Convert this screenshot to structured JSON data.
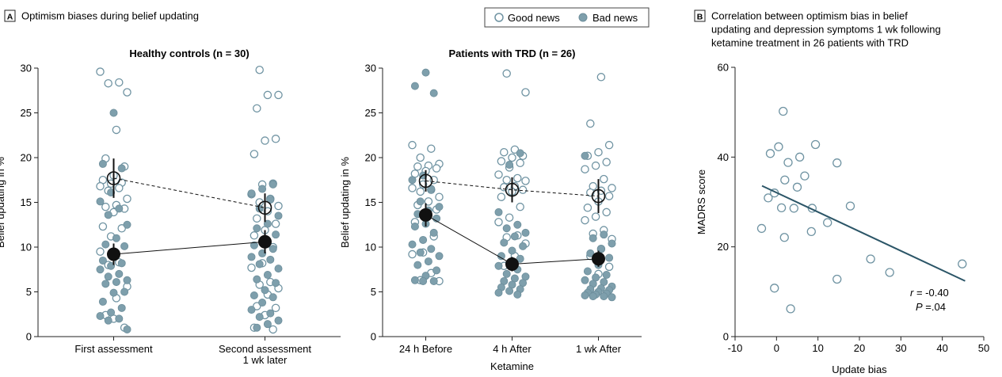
{
  "colors": {
    "good": "#6f93a2",
    "bad": "#7e9fac",
    "line": "#2b5567",
    "axis": "#222222"
  },
  "panel_a": {
    "letter": "A",
    "title": "Optimism biases during belief updating",
    "legend": {
      "good": "Good news",
      "bad": "Bad news"
    }
  },
  "panel_b": {
    "letter": "B",
    "title_lines": [
      "Correlation between optimism bias in belief",
      "updating and depression symptoms 1 wk following",
      "ketamine treatment in 26 patients with TRD"
    ]
  },
  "chart_data": [
    {
      "type": "scatter",
      "panel": "A",
      "title": "Healthy controls (n = 30)",
      "ylabel": "Belief updating in %",
      "ylim": [
        0,
        30
      ],
      "yticks": [
        0,
        5,
        10,
        15,
        20,
        25,
        30
      ],
      "categories": [
        "First assessment",
        "Second assessment\n1 wk later"
      ],
      "series": [
        {
          "name": "Good news",
          "means": [
            17.7,
            14.4
          ],
          "err": [
            2.2,
            1.6
          ],
          "points": [
            [
              29.6,
              28.4,
              28.3,
              27.3,
              23.1,
              19.9,
              19.0,
              18.0,
              17.5,
              17.2,
              17.1,
              16.8,
              16.6,
              16.3,
              15.4,
              14.7,
              14.5,
              14.3,
              13.9,
              12.3,
              12.1,
              11.2,
              9.5,
              8.3,
              8.0,
              5.6,
              4.3,
              2.4,
              1.0,
              2.0
            ],
            [
              29.8,
              27.0,
              27.0,
              25.5,
              22.1,
              21.9,
              20.4,
              17.1,
              17.0,
              15.9,
              15.4,
              15.0,
              14.6,
              14.0,
              13.2,
              12.6,
              11.9,
              11.3,
              10.0,
              8.2,
              7.7,
              6.1,
              5.8,
              5.4,
              4.7,
              3.4,
              3.2,
              2.4,
              1.0,
              0.8
            ]
          ]
        },
        {
          "name": "Bad news",
          "means": [
            9.2,
            10.6
          ],
          "err": [
            1.2,
            1.3
          ],
          "points": [
            [
              25.0,
              19.3,
              18.8,
              16.1,
              15.1,
              14.3,
              13.6,
              12.5,
              11.0,
              10.3,
              10.1,
              9.4,
              8.5,
              8.2,
              7.9,
              7.5,
              7.0,
              6.7,
              6.3,
              6.1,
              5.9,
              5.0,
              4.9,
              3.9,
              3.2,
              2.7,
              2.3,
              2.0,
              1.8,
              0.8
            ],
            [
              17.0,
              16.5,
              16.0,
              15.3,
              14.3,
              13.5,
              12.6,
              12.1,
              11.4,
              10.5,
              10.2,
              9.8,
              9.3,
              8.9,
              8.6,
              8.1,
              7.6,
              6.9,
              6.4,
              6.0,
              5.2,
              4.6,
              4.4,
              3.8,
              3.0,
              2.6,
              2.2,
              1.8,
              1.4,
              1.0
            ]
          ]
        }
      ]
    },
    {
      "type": "scatter",
      "panel": "A",
      "title": "Patients with TRD (n = 26)",
      "ylabel": "Belief updating in %",
      "xlabel": "Ketamine",
      "ylim": [
        0,
        30
      ],
      "yticks": [
        0,
        5,
        10,
        15,
        20,
        25,
        30
      ],
      "categories": [
        "24 h Before",
        "4 h After",
        "1 wk After"
      ],
      "series": [
        {
          "name": "Good news",
          "means": [
            17.4,
            16.4,
            15.7
          ],
          "err": [
            1.2,
            1.4,
            1.9
          ],
          "points": [
            [
              21.4,
              21.0,
              20.0,
              19.3,
              19.1,
              19.0,
              18.8,
              18.5,
              18.2,
              17.5,
              17.0,
              16.6,
              16.4,
              16.2,
              15.6,
              15.1,
              14.7,
              14.2,
              13.5,
              12.8,
              11.2,
              9.4,
              9.2,
              7.1,
              6.3,
              6.2
            ],
            [
              29.4,
              27.3,
              20.9,
              20.6,
              20.2,
              20.0,
              19.6,
              19.4,
              18.9,
              18.1,
              17.7,
              17.5,
              17.4,
              16.8,
              16.7,
              16.4,
              16.2,
              15.6,
              14.5,
              13.3,
              12.8,
              11.3,
              11.1,
              10.4,
              9.0,
              7.9
            ],
            [
              29.0,
              23.8,
              21.4,
              20.6,
              20.2,
              19.5,
              19.1,
              18.7,
              17.6,
              16.8,
              16.6,
              16.3,
              16.1,
              15.7,
              15.1,
              14.4,
              13.9,
              13.4,
              13.0,
              11.9,
              11.5,
              10.9,
              9.8,
              9.0,
              7.8,
              7.0
            ]
          ]
        },
        {
          "name": "Bad news",
          "means": [
            13.6,
            8.1,
            8.7
          ],
          "err": [
            1.3,
            0.8,
            0.9
          ],
          "points": [
            [
              29.5,
              28.0,
              27.2,
              18.0,
              17.5,
              16.5,
              15.1,
              14.5,
              14.1,
              13.7,
              13.2,
              12.6,
              12.3,
              11.6,
              10.8,
              10.3,
              9.8,
              9.4,
              9.0,
              8.4,
              8.0,
              7.4,
              6.8,
              6.3,
              6.2,
              6.2
            ],
            [
              20.5,
              19.2,
              13.9,
              12.5,
              12.1,
              11.6,
              11.2,
              10.5,
              10.1,
              9.6,
              9.0,
              8.7,
              8.2,
              7.9,
              7.5,
              7.0,
              6.7,
              6.5,
              6.2,
              6.0,
              5.8,
              5.5,
              5.3,
              5.1,
              4.9,
              4.7
            ],
            [
              20.2,
              11.4,
              11.0,
              10.4,
              9.8,
              9.3,
              8.8,
              8.0,
              7.3,
              6.9,
              6.6,
              6.3,
              6.1,
              5.9,
              5.6,
              5.4,
              5.3,
              5.2,
              5.0,
              4.9,
              4.8,
              4.7,
              4.6,
              4.5,
              4.5,
              4.4
            ]
          ]
        }
      ]
    },
    {
      "type": "scatter",
      "panel": "B",
      "xlabel": "Update bias",
      "ylabel": "MADRS score",
      "xlim": [
        -10,
        50
      ],
      "ylim": [
        0,
        60
      ],
      "xticks": [
        -10,
        0,
        10,
        20,
        30,
        40,
        50
      ],
      "yticks": [
        0,
        20,
        40,
        60
      ],
      "points": [
        {
          "x": 1.6,
          "y": 50.2
        },
        {
          "x": -1.5,
          "y": 40.8
        },
        {
          "x": 0.5,
          "y": 42.3
        },
        {
          "x": 5.6,
          "y": 40.0
        },
        {
          "x": 9.4,
          "y": 42.8
        },
        {
          "x": 2.8,
          "y": 38.8
        },
        {
          "x": 14.6,
          "y": 38.7
        },
        {
          "x": 6.8,
          "y": 35.8
        },
        {
          "x": -0.5,
          "y": 32.0
        },
        {
          "x": 2.0,
          "y": 34.9
        },
        {
          "x": 5.0,
          "y": 33.3
        },
        {
          "x": -2.0,
          "y": 30.9
        },
        {
          "x": 1.2,
          "y": 28.7
        },
        {
          "x": 4.2,
          "y": 28.6
        },
        {
          "x": 8.6,
          "y": 28.6
        },
        {
          "x": 17.8,
          "y": 29.1
        },
        {
          "x": -3.6,
          "y": 24.1
        },
        {
          "x": 8.4,
          "y": 23.4
        },
        {
          "x": 1.9,
          "y": 22.1
        },
        {
          "x": 12.3,
          "y": 25.4
        },
        {
          "x": 22.7,
          "y": 17.3
        },
        {
          "x": 14.6,
          "y": 12.8
        },
        {
          "x": 27.3,
          "y": 14.3
        },
        {
          "x": 44.8,
          "y": 16.2
        },
        {
          "x": -0.5,
          "y": 10.8
        },
        {
          "x": 3.4,
          "y": 6.2
        }
      ],
      "regression": {
        "x1": -3.5,
        "y1": 33.6,
        "x2": 45.5,
        "y2": 12.4
      },
      "annotation": {
        "r_label": "r",
        "r_value": " = -0.40",
        "p_label": "P",
        "p_value": " =.04"
      }
    }
  ]
}
